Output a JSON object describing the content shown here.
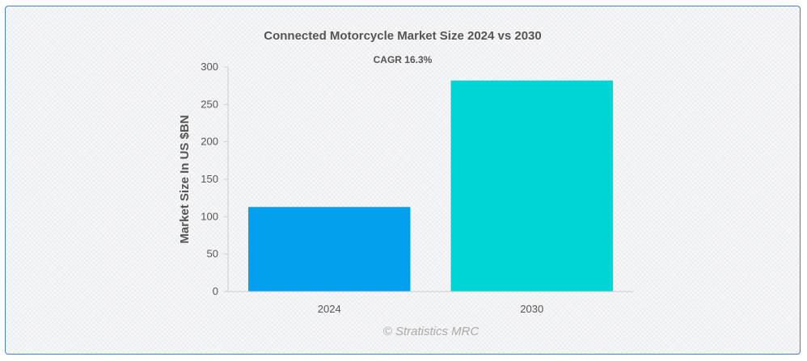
{
  "chart_data": {
    "type": "bar",
    "title": "Connected Motorcycle Market Size 2024 vs 2030",
    "subtitle": "CAGR 16.3%",
    "xlabel": "",
    "ylabel": "Market Size In US $BN",
    "categories": [
      "2024",
      "2030"
    ],
    "values": [
      113,
      282
    ],
    "colors": [
      "#03a0ed",
      "#00d5d5"
    ],
    "ylim": [
      0,
      300
    ],
    "yticks": [
      0,
      50,
      100,
      150,
      200,
      250,
      300
    ],
    "grid": false,
    "legend": "none"
  },
  "watermark": "© Stratistics MRC"
}
